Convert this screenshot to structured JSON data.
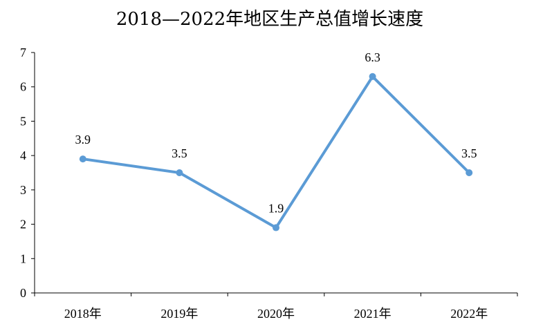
{
  "chart_data": {
    "type": "line",
    "title": "2018—2022年地区生产总值增长速度",
    "categories": [
      "2018年",
      "2019年",
      "2020年",
      "2021年",
      "2022年"
    ],
    "series": [
      {
        "values": [
          3.9,
          3.5,
          1.9,
          6.3,
          3.5
        ]
      }
    ],
    "data_labels": [
      "3.9",
      "3.5",
      "1.9",
      "6.3",
      "3.5"
    ],
    "yticks": [
      "0",
      "1",
      "2",
      "3",
      "4",
      "5",
      "6",
      "7"
    ],
    "ylim": [
      0,
      7
    ],
    "grid": false,
    "legend": "none",
    "colors": {
      "line": "#5b9bd5",
      "axis": "#000000"
    }
  }
}
